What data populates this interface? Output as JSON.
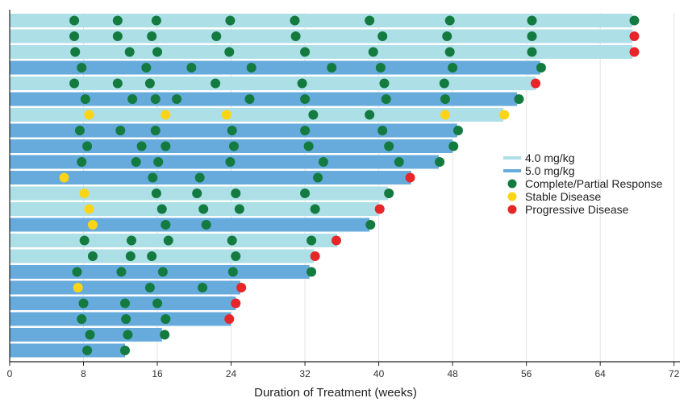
{
  "chart_data": {
    "type": "swimmer",
    "xlabel": "Duration of Treatment (weeks)",
    "xlim": [
      0,
      73
    ],
    "x_ticks": [
      0,
      8,
      16,
      24,
      32,
      40,
      48,
      56,
      64,
      72
    ],
    "grid": "vertical",
    "legend_position": "right",
    "colors": {
      "dose_4": "#ADDFE6",
      "dose_5": "#66ABDC",
      "response": "#137A40",
      "stable": "#FBD515",
      "progressive": "#E62628"
    },
    "legend": [
      {
        "label": "4.0 mg/kg",
        "kind": "line",
        "color_key": "dose_4"
      },
      {
        "label": "5.0 mg/kg",
        "kind": "line",
        "color_key": "dose_5"
      },
      {
        "label": "Complete/Partial Response",
        "kind": "dot",
        "color_key": "response"
      },
      {
        "label": "Stable Disease",
        "kind": "dot",
        "color_key": "stable"
      },
      {
        "label": "Progressive Disease",
        "kind": "dot",
        "color_key": "progressive"
      }
    ],
    "patients": [
      {
        "dose": "4.0 mg/kg",
        "duration": 67.5,
        "events": [
          {
            "t": 7,
            "s": "R"
          },
          {
            "t": 11.7,
            "s": "R"
          },
          {
            "t": 15.9,
            "s": "R"
          },
          {
            "t": 23.9,
            "s": "R"
          },
          {
            "t": 30.9,
            "s": "R"
          },
          {
            "t": 39,
            "s": "R"
          },
          {
            "t": 47.7,
            "s": "R"
          },
          {
            "t": 56.6,
            "s": "R"
          },
          {
            "t": 67.7,
            "s": "R"
          }
        ]
      },
      {
        "dose": "4.0 mg/kg",
        "duration": 67.5,
        "events": [
          {
            "t": 7,
            "s": "R"
          },
          {
            "t": 11.7,
            "s": "R"
          },
          {
            "t": 15.4,
            "s": "R"
          },
          {
            "t": 22.4,
            "s": "R"
          },
          {
            "t": 31,
            "s": "R"
          },
          {
            "t": 40.4,
            "s": "R"
          },
          {
            "t": 47.4,
            "s": "R"
          },
          {
            "t": 56.6,
            "s": "R"
          },
          {
            "t": 67.7,
            "s": "P"
          }
        ]
      },
      {
        "dose": "4.0 mg/kg",
        "duration": 67.5,
        "events": [
          {
            "t": 7.1,
            "s": "R"
          },
          {
            "t": 13,
            "s": "R"
          },
          {
            "t": 16,
            "s": "R"
          },
          {
            "t": 23.8,
            "s": "R"
          },
          {
            "t": 32,
            "s": "R"
          },
          {
            "t": 39.4,
            "s": "R"
          },
          {
            "t": 47.7,
            "s": "R"
          },
          {
            "t": 56.6,
            "s": "R"
          },
          {
            "t": 67.7,
            "s": "P"
          }
        ]
      },
      {
        "dose": "5.0 mg/kg",
        "duration": 57.5,
        "events": [
          {
            "t": 7.8,
            "s": "R"
          },
          {
            "t": 14.8,
            "s": "R"
          },
          {
            "t": 19.7,
            "s": "R"
          },
          {
            "t": 26.2,
            "s": "R"
          },
          {
            "t": 34.9,
            "s": "R"
          },
          {
            "t": 40.2,
            "s": "R"
          },
          {
            "t": 48,
            "s": "R"
          },
          {
            "t": 57.6,
            "s": "R"
          }
        ]
      },
      {
        "dose": "4.0 mg/kg",
        "duration": 57,
        "events": [
          {
            "t": 7,
            "s": "R"
          },
          {
            "t": 11.7,
            "s": "R"
          },
          {
            "t": 15.2,
            "s": "R"
          },
          {
            "t": 22.3,
            "s": "R"
          },
          {
            "t": 31.7,
            "s": "R"
          },
          {
            "t": 40.6,
            "s": "R"
          },
          {
            "t": 47.1,
            "s": "R"
          },
          {
            "t": 57,
            "s": "P"
          }
        ]
      },
      {
        "dose": "5.0 mg/kg",
        "duration": 55,
        "events": [
          {
            "t": 8.2,
            "s": "R"
          },
          {
            "t": 13.3,
            "s": "R"
          },
          {
            "t": 15.8,
            "s": "R"
          },
          {
            "t": 18.1,
            "s": "R"
          },
          {
            "t": 26,
            "s": "R"
          },
          {
            "t": 32,
            "s": "R"
          },
          {
            "t": 40.8,
            "s": "R"
          },
          {
            "t": 47.2,
            "s": "R"
          },
          {
            "t": 55.2,
            "s": "R"
          }
        ]
      },
      {
        "dose": "4.0 mg/kg",
        "duration": 53.5,
        "events": [
          {
            "t": 8.6,
            "s": "S"
          },
          {
            "t": 16.9,
            "s": "S"
          },
          {
            "t": 23.5,
            "s": "S"
          },
          {
            "t": 32.9,
            "s": "R"
          },
          {
            "t": 39,
            "s": "R"
          },
          {
            "t": 47.2,
            "s": "S"
          },
          {
            "t": 53.6,
            "s": "S"
          }
        ]
      },
      {
        "dose": "5.0 mg/kg",
        "duration": 48.5,
        "events": [
          {
            "t": 7.6,
            "s": "R"
          },
          {
            "t": 12,
            "s": "R"
          },
          {
            "t": 15.8,
            "s": "R"
          },
          {
            "t": 24.1,
            "s": "R"
          },
          {
            "t": 32,
            "s": "R"
          },
          {
            "t": 40.4,
            "s": "R"
          },
          {
            "t": 48.6,
            "s": "R"
          }
        ]
      },
      {
        "dose": "5.0 mg/kg",
        "duration": 48,
        "events": [
          {
            "t": 8.4,
            "s": "R"
          },
          {
            "t": 14.3,
            "s": "R"
          },
          {
            "t": 16.9,
            "s": "R"
          },
          {
            "t": 24.3,
            "s": "R"
          },
          {
            "t": 32.4,
            "s": "R"
          },
          {
            "t": 41.1,
            "s": "R"
          },
          {
            "t": 48.1,
            "s": "R"
          }
        ]
      },
      {
        "dose": "5.0 mg/kg",
        "duration": 46.5,
        "events": [
          {
            "t": 7.8,
            "s": "R"
          },
          {
            "t": 13.7,
            "s": "R"
          },
          {
            "t": 16.1,
            "s": "R"
          },
          {
            "t": 23.9,
            "s": "R"
          },
          {
            "t": 34,
            "s": "R"
          },
          {
            "t": 42.2,
            "s": "R"
          },
          {
            "t": 46.6,
            "s": "R"
          }
        ]
      },
      {
        "dose": "5.0 mg/kg",
        "duration": 43.5,
        "events": [
          {
            "t": 5.9,
            "s": "S"
          },
          {
            "t": 15.5,
            "s": "R"
          },
          {
            "t": 20.6,
            "s": "R"
          },
          {
            "t": 33.4,
            "s": "R"
          },
          {
            "t": 43.4,
            "s": "P"
          }
        ]
      },
      {
        "dose": "4.0 mg/kg",
        "duration": 41,
        "events": [
          {
            "t": 8.1,
            "s": "S"
          },
          {
            "t": 15.9,
            "s": "R"
          },
          {
            "t": 20.3,
            "s": "R"
          },
          {
            "t": 24.5,
            "s": "R"
          },
          {
            "t": 32,
            "s": "R"
          },
          {
            "t": 41.1,
            "s": "R"
          }
        ]
      },
      {
        "dose": "4.0 mg/kg",
        "duration": 40,
        "events": [
          {
            "t": 8.6,
            "s": "S"
          },
          {
            "t": 16.5,
            "s": "R"
          },
          {
            "t": 21,
            "s": "R"
          },
          {
            "t": 24.9,
            "s": "R"
          },
          {
            "t": 33.1,
            "s": "R"
          },
          {
            "t": 40.1,
            "s": "P"
          }
        ]
      },
      {
        "dose": "5.0 mg/kg",
        "duration": 39,
        "events": [
          {
            "t": 9,
            "s": "S"
          },
          {
            "t": 16.9,
            "s": "R"
          },
          {
            "t": 21.3,
            "s": "R"
          },
          {
            "t": 39.1,
            "s": "R"
          }
        ]
      },
      {
        "dose": "4.0 mg/kg",
        "duration": 35.5,
        "events": [
          {
            "t": 8.1,
            "s": "R"
          },
          {
            "t": 13.2,
            "s": "R"
          },
          {
            "t": 17.2,
            "s": "R"
          },
          {
            "t": 24.1,
            "s": "R"
          },
          {
            "t": 32.7,
            "s": "R"
          },
          {
            "t": 35.4,
            "s": "P"
          }
        ]
      },
      {
        "dose": "4.0 mg/kg",
        "duration": 33,
        "events": [
          {
            "t": 9,
            "s": "R"
          },
          {
            "t": 13.1,
            "s": "R"
          },
          {
            "t": 15.4,
            "s": "R"
          },
          {
            "t": 24.5,
            "s": "R"
          },
          {
            "t": 33.1,
            "s": "P"
          }
        ]
      },
      {
        "dose": "5.0 mg/kg",
        "duration": 32.5,
        "events": [
          {
            "t": 7.3,
            "s": "R"
          },
          {
            "t": 12.1,
            "s": "R"
          },
          {
            "t": 16.6,
            "s": "R"
          },
          {
            "t": 24.2,
            "s": "R"
          },
          {
            "t": 32.7,
            "s": "R"
          }
        ]
      },
      {
        "dose": "5.0 mg/kg",
        "duration": 25,
        "events": [
          {
            "t": 7.4,
            "s": "S"
          },
          {
            "t": 15.2,
            "s": "R"
          },
          {
            "t": 20.9,
            "s": "R"
          },
          {
            "t": 25.1,
            "s": "P"
          }
        ]
      },
      {
        "dose": "5.0 mg/kg",
        "duration": 24.5,
        "events": [
          {
            "t": 8,
            "s": "R"
          },
          {
            "t": 12.5,
            "s": "R"
          },
          {
            "t": 16,
            "s": "R"
          },
          {
            "t": 24.5,
            "s": "P"
          }
        ]
      },
      {
        "dose": "5.0 mg/kg",
        "duration": 24,
        "events": [
          {
            "t": 7.8,
            "s": "R"
          },
          {
            "t": 12.6,
            "s": "R"
          },
          {
            "t": 16.9,
            "s": "R"
          },
          {
            "t": 23.8,
            "s": "P"
          }
        ]
      },
      {
        "dose": "5.0 mg/kg",
        "duration": 16.5,
        "events": [
          {
            "t": 8.7,
            "s": "R"
          },
          {
            "t": 12.8,
            "s": "R"
          },
          {
            "t": 16.8,
            "s": "R"
          }
        ]
      },
      {
        "dose": "5.0 mg/kg",
        "duration": 12.5,
        "events": [
          {
            "t": 8.4,
            "s": "R"
          },
          {
            "t": 12.5,
            "s": "R"
          }
        ]
      }
    ]
  }
}
